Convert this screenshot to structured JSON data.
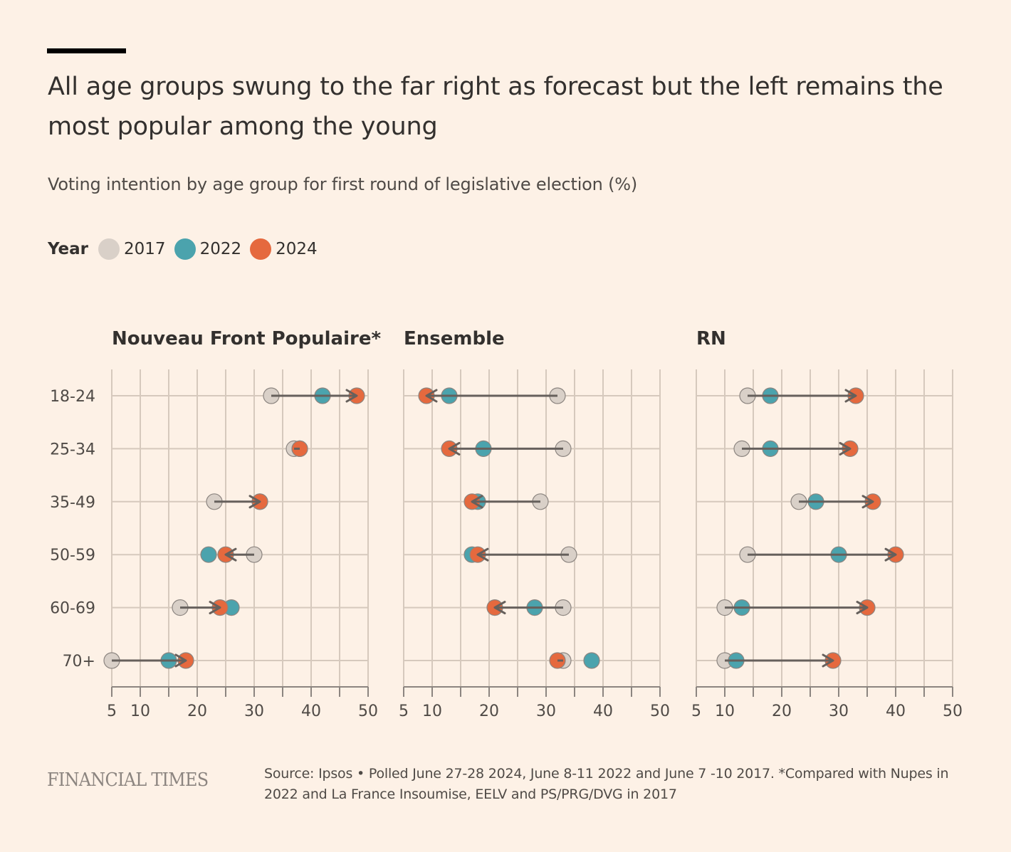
{
  "header": {
    "title": "All age groups swung to the far right as forecast but the left remains the most popular among the young",
    "subtitle": "Voting intention by age group for first round of legislative election (%)"
  },
  "legend": {
    "title": "Year",
    "items": [
      {
        "label": "2017",
        "color": "#d9d0c8"
      },
      {
        "label": "2022",
        "color": "#4ba3ad"
      },
      {
        "label": "2024",
        "color": "#e5693e"
      }
    ]
  },
  "colors": {
    "background": "#fdf1e6",
    "grid": "#d6c9bd",
    "axis": "#8c8580",
    "arrow": "#66605c",
    "circle_stroke": "#8c8580"
  },
  "chart_data": [
    {
      "type": "scatter",
      "subtype": "arrow-dot-plot",
      "title": "Nouveau Front Populaire*",
      "categories": [
        "18-24",
        "25-34",
        "35-49",
        "50-59",
        "60-69",
        "70+"
      ],
      "series": [
        {
          "name": "2017",
          "values": [
            33,
            37,
            23,
            30,
            17,
            5
          ]
        },
        {
          "name": "2022",
          "values": [
            42,
            38,
            31,
            22,
            26,
            15
          ]
        },
        {
          "name": "2024",
          "values": [
            48,
            38,
            31,
            25,
            24,
            18
          ]
        }
      ],
      "arrow": {
        "from": "2017",
        "to": "2024"
      },
      "xlim": [
        5,
        50
      ],
      "xticks": [
        5,
        10,
        15,
        20,
        25,
        30,
        35,
        40,
        45,
        50
      ],
      "xtick_labels": [
        "5",
        "10",
        "",
        "20",
        "",
        "30",
        "",
        "40",
        "",
        "50"
      ],
      "grid": true,
      "xlabel": "",
      "ylabel": ""
    },
    {
      "type": "scatter",
      "subtype": "arrow-dot-plot",
      "title": "Ensemble",
      "categories": [
        "18-24",
        "25-34",
        "35-49",
        "50-59",
        "60-69",
        "70+"
      ],
      "series": [
        {
          "name": "2017",
          "values": [
            32,
            33,
            29,
            34,
            33,
            33
          ]
        },
        {
          "name": "2022",
          "values": [
            13,
            19,
            18,
            17,
            28,
            38
          ]
        },
        {
          "name": "2024",
          "values": [
            9,
            13,
            17,
            18,
            21,
            32
          ]
        }
      ],
      "arrow": {
        "from": "2017",
        "to": "2024"
      },
      "xlim": [
        5,
        50
      ],
      "xticks": [
        5,
        10,
        15,
        20,
        25,
        30,
        35,
        40,
        45,
        50
      ],
      "xtick_labels": [
        "5",
        "10",
        "",
        "20",
        "",
        "30",
        "",
        "40",
        "",
        "50"
      ],
      "grid": true,
      "xlabel": "",
      "ylabel": ""
    },
    {
      "type": "scatter",
      "subtype": "arrow-dot-plot",
      "title": "RN",
      "categories": [
        "18-24",
        "25-34",
        "35-49",
        "50-59",
        "60-69",
        "70+"
      ],
      "series": [
        {
          "name": "2017",
          "values": [
            14,
            13,
            23,
            14,
            10,
            10
          ]
        },
        {
          "name": "2022",
          "values": [
            18,
            18,
            26,
            30,
            13,
            12
          ]
        },
        {
          "name": "2024",
          "values": [
            33,
            32,
            36,
            40,
            35,
            29
          ]
        }
      ],
      "arrow": {
        "from": "2017",
        "to": "2024"
      },
      "xlim": [
        5,
        50
      ],
      "xticks": [
        5,
        10,
        15,
        20,
        25,
        30,
        35,
        40,
        45,
        50
      ],
      "xtick_labels": [
        "5",
        "10",
        "",
        "20",
        "",
        "30",
        "",
        "40",
        "",
        "50"
      ],
      "grid": true,
      "xlabel": "",
      "ylabel": ""
    }
  ],
  "footer": {
    "logo": "FINANCIAL TIMES",
    "source": "Source: Ipsos • Polled June 27-28 2024, June 8-11 2022 and June 7 -10 2017. *Compared with Nupes in 2022 and La France Insoumise, EELV and PS/PRG/DVG in 2017"
  }
}
